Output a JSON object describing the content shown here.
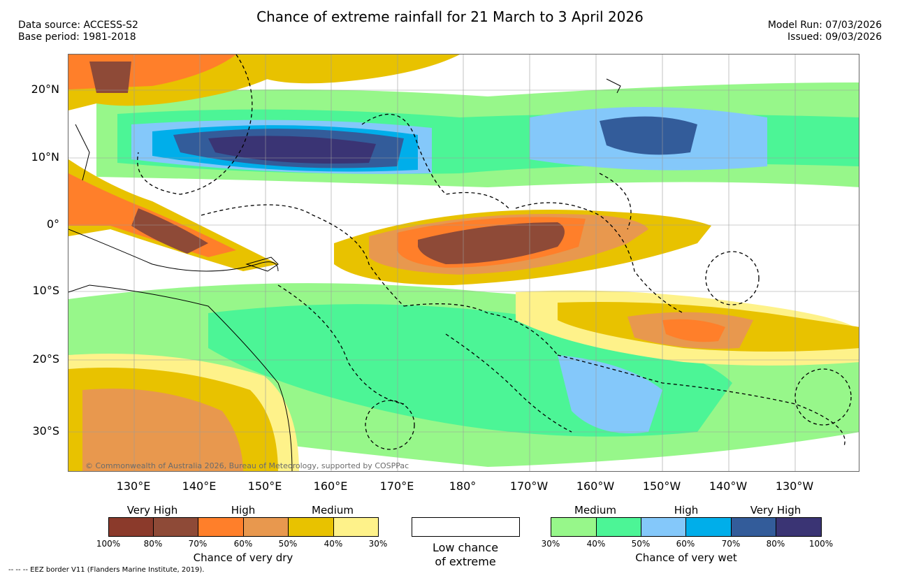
{
  "header": {
    "title": "Chance of extreme rainfall for 21 March to 3 April 2026",
    "data_source": "Data source: ACCESS-S2",
    "base_period": "Base period: 1981-2018",
    "model_run": "Model Run: 07/03/2026",
    "issued": "Issued: 09/03/2026"
  },
  "map": {
    "lat_labels": [
      "20°N",
      "10°N",
      "0°",
      "10°S",
      "20°S",
      "30°S"
    ],
    "lon_labels": [
      "130°E",
      "140°E",
      "150°E",
      "160°E",
      "170°E",
      "180°",
      "170°W",
      "160°W",
      "150°W",
      "140°W",
      "130°W"
    ],
    "copyright": "© Commonwealth of Australia 2026, Bureau of Meteorology, supported by COSPPac"
  },
  "legend": {
    "dry": {
      "title": "Chance of very dry",
      "categories": [
        "Very High",
        "High",
        "Medium"
      ],
      "ticks": [
        "100%",
        "80%",
        "70%",
        "60%",
        "50%",
        "40%",
        "30%"
      ],
      "colors": [
        "#8b3a2b",
        "#8e4a37",
        "#ff7f2a",
        "#e8984e",
        "#e8c200",
        "#fef28a"
      ]
    },
    "low": {
      "label_line1": "Low chance",
      "label_line2": "of extreme"
    },
    "wet": {
      "title": "Chance of very wet",
      "categories": [
        "Medium",
        "High",
        "Very High"
      ],
      "ticks": [
        "30%",
        "40%",
        "50%",
        "60%",
        "70%",
        "80%",
        "100%"
      ],
      "colors": [
        "#97f78a",
        "#4cf596",
        "#84c8fa",
        "#00aeea",
        "#335c9a",
        "#3a3474"
      ]
    }
  },
  "footer": {
    "eez_note": "-- -- -- EEZ border V11 (Flanders Marine Institute, 2019)."
  }
}
